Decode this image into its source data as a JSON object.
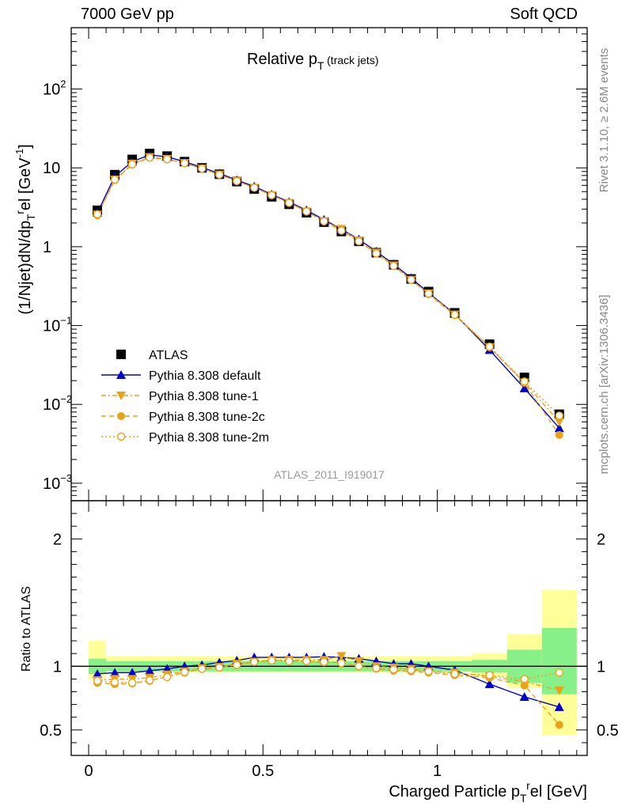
{
  "header": {
    "left": "7000 GeV pp",
    "right": "Soft QCD"
  },
  "side_text": {
    "upper": "Rivet 3.1.10, ≥ 2.6M events",
    "lower": "mcplots.cern.ch [arXiv:1306.3436]"
  },
  "chart_data": [
    {
      "type": "line",
      "title": "Relative p",
      "title_subscript": "T",
      "title_suffix": "(track jets)",
      "ylabel": "(1/Njet)dN/dp",
      "ylabel_sub": "T",
      "ylabel_sup": "r",
      "ylabel_rest": "el [GeV",
      "ylabel_exp": "-1",
      "ylabel_close": "]",
      "yscale": "log",
      "ylim": [
        0.0006,
        600
      ],
      "xlim": [
        -0.05,
        1.43
      ],
      "yticks": [
        {
          "v": 100,
          "base": "10",
          "exp": "2"
        },
        {
          "v": 10,
          "base": "10",
          "exp": ""
        },
        {
          "v": 1,
          "base": "1",
          "exp": ""
        },
        {
          "v": 0.1,
          "base": "10",
          "exp": "−1"
        },
        {
          "v": 0.01,
          "base": "10",
          "exp": "−2"
        },
        {
          "v": 0.001,
          "base": "10",
          "exp": "−3"
        }
      ],
      "analysis_label": "ATLAS_2011_I919017",
      "legend_position": "bottom-left",
      "colors": {
        "atlas": "#000000",
        "default": "#0000cc",
        "orange": "#e8a317"
      },
      "x": [
        0.025,
        0.075,
        0.125,
        0.175,
        0.225,
        0.275,
        0.325,
        0.375,
        0.425,
        0.475,
        0.525,
        0.575,
        0.625,
        0.675,
        0.725,
        0.775,
        0.825,
        0.875,
        0.925,
        0.975,
        1.05,
        1.15,
        1.25,
        1.35
      ],
      "series": [
        {
          "name": "ATLAS",
          "marker": "square",
          "values": [
            2.9,
            8.2,
            12.8,
            15.2,
            14.1,
            12.0,
            10.0,
            8.3,
            6.7,
            5.4,
            4.3,
            3.45,
            2.7,
            2.05,
            1.56,
            1.17,
            0.84,
            0.59,
            0.39,
            0.27,
            0.145,
            0.058,
            0.022,
            0.0075
          ]
        },
        {
          "name": "Pythia 8.308 default",
          "marker": "triangle-up",
          "line": "solid",
          "values": [
            2.7,
            7.8,
            12.0,
            14.6,
            13.8,
            12.0,
            10.1,
            8.5,
            7.0,
            5.8,
            4.6,
            3.7,
            2.9,
            2.2,
            1.67,
            1.24,
            0.87,
            0.6,
            0.4,
            0.26,
            0.14,
            0.049,
            0.016,
            0.005
          ]
        },
        {
          "name": "Pythia 8.308 tune-1",
          "marker": "triangle-down",
          "line": "dashdot",
          "values": [
            2.55,
            7.1,
            11.3,
            13.7,
            13.0,
            11.5,
            9.8,
            8.2,
            6.8,
            5.6,
            4.5,
            3.6,
            2.8,
            2.1,
            1.68,
            1.2,
            0.84,
            0.58,
            0.38,
            0.255,
            0.138,
            0.053,
            0.019,
            0.006
          ]
        },
        {
          "name": "Pythia 8.308 tune-2c",
          "marker": "circle",
          "line": "dashed",
          "values": [
            2.5,
            7.0,
            11.0,
            13.4,
            12.8,
            11.4,
            9.8,
            8.2,
            6.8,
            5.6,
            4.5,
            3.6,
            2.8,
            2.1,
            1.6,
            1.17,
            0.82,
            0.57,
            0.38,
            0.25,
            0.135,
            0.053,
            0.0187,
            0.0041
          ]
        },
        {
          "name": "Pythia 8.308 tune-2m",
          "marker": "open-circle",
          "line": "dotted",
          "values": [
            2.58,
            7.1,
            11.1,
            13.5,
            12.9,
            11.5,
            9.8,
            8.2,
            6.8,
            5.6,
            4.5,
            3.6,
            2.8,
            2.1,
            1.6,
            1.17,
            0.82,
            0.57,
            0.38,
            0.255,
            0.137,
            0.054,
            0.0195,
            0.0072
          ]
        }
      ]
    },
    {
      "type": "line",
      "ylabel": "Ratio to ATLAS",
      "xlabel": "Charged Particle p",
      "xlabel_sub": "T",
      "xlabel_sup": "r",
      "xlabel_rest": "el [GeV]",
      "ylim": [
        0.3,
        2.3
      ],
      "yticks": [
        2,
        1,
        0.5
      ],
      "ytick_labels": [
        "2",
        "1",
        "0.5"
      ],
      "xticks": [
        0,
        0.5,
        1
      ],
      "xtick_labels": [
        "0",
        "0.5",
        "1"
      ],
      "bands": {
        "bin_edges": [
          0.0,
          0.05,
          1.1,
          1.2,
          1.3,
          1.4
        ],
        "green": [
          [
            0.94,
            1.06
          ],
          [
            0.96,
            1.04
          ],
          [
            0.95,
            1.05
          ],
          [
            0.87,
            1.13
          ],
          [
            0.78,
            1.3
          ]
        ],
        "yellow": [
          [
            0.9,
            1.2
          ],
          [
            0.95,
            1.08
          ],
          [
            0.92,
            1.1
          ],
          [
            0.83,
            1.25
          ],
          [
            0.46,
            1.6
          ]
        ],
        "green_x0": 0.0,
        "green_breaks": [
          0.05,
          0.5,
          0.9,
          1.1,
          1.2,
          1.3,
          1.4
        ]
      },
      "x": [
        0.025,
        0.075,
        0.125,
        0.175,
        0.225,
        0.275,
        0.325,
        0.375,
        0.425,
        0.475,
        0.525,
        0.575,
        0.625,
        0.675,
        0.725,
        0.775,
        0.825,
        0.875,
        0.925,
        0.975,
        1.05,
        1.15,
        1.25,
        1.35
      ],
      "series": [
        {
          "name": "Pythia 8.308 default",
          "values": [
            0.94,
            0.95,
            0.95,
            0.965,
            0.98,
            1.0,
            1.01,
            1.03,
            1.045,
            1.07,
            1.07,
            1.07,
            1.07,
            1.075,
            1.07,
            1.06,
            1.04,
            1.02,
            1.02,
            1.0,
            0.97,
            0.86,
            0.76,
            0.68
          ]
        },
        {
          "name": "Pythia 8.308 tune-1",
          "values": [
            0.89,
            0.9,
            0.9,
            0.91,
            0.935,
            0.96,
            0.985,
            0.995,
            1.02,
            1.035,
            1.05,
            1.05,
            1.05,
            1.05,
            1.08,
            1.04,
            1.0,
            0.99,
            0.98,
            0.96,
            0.95,
            0.92,
            0.88,
            0.81
          ]
        },
        {
          "name": "Pythia 8.308 tune-2c",
          "values": [
            0.87,
            0.86,
            0.865,
            0.885,
            0.92,
            0.95,
            0.98,
            0.99,
            1.01,
            1.035,
            1.045,
            1.045,
            1.04,
            1.03,
            1.03,
            1.0,
            0.98,
            0.965,
            0.96,
            0.95,
            0.93,
            0.91,
            0.85,
            0.54
          ]
        },
        {
          "name": "Pythia 8.308 tune-2m",
          "values": [
            0.885,
            0.875,
            0.87,
            0.89,
            0.915,
            0.955,
            0.98,
            0.99,
            1.01,
            1.035,
            1.045,
            1.04,
            1.04,
            1.035,
            1.025,
            1.0,
            0.985,
            0.975,
            0.97,
            0.96,
            0.94,
            0.93,
            0.9,
            0.95
          ]
        }
      ]
    }
  ]
}
